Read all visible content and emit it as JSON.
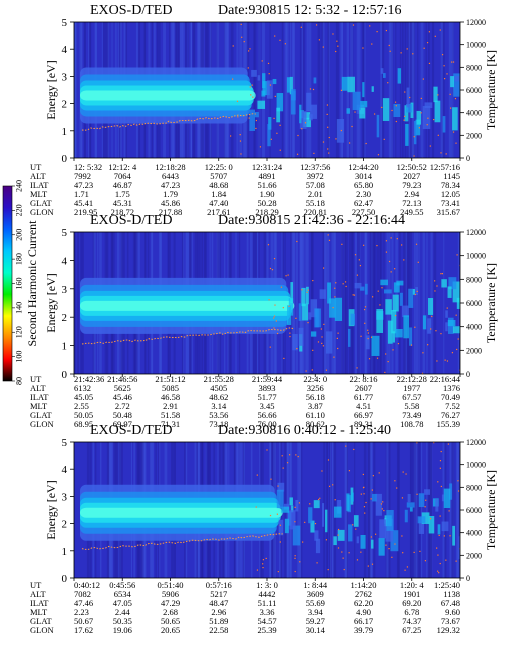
{
  "chart_data": {
    "type": "heatmap",
    "colorbar": {
      "label": "Second Harmonic Current",
      "ticks": [
        "80",
        "100",
        "120",
        "140",
        "160",
        "180",
        "200",
        "220",
        "240"
      ],
      "colors": [
        "#000000",
        "#ff0000",
        "#ff8800",
        "#ffff00",
        "#00ee00",
        "#00ffcc",
        "#00c8ff",
        "#0060ff",
        "#2a10c8",
        "#4b0082"
      ]
    },
    "panels": [
      {
        "title": "EXOS-D/TED",
        "date": "Date:930815  12: 5:32 - 12:57:16",
        "ylabel": "Energy [eV]",
        "y2label": "Temperature [K]",
        "yticks": [
          "0",
          "1",
          "2",
          "3",
          "4",
          "5"
        ],
        "y2ticks": [
          "0",
          "2000",
          "4000",
          "6000",
          "8000",
          "10000",
          "12000"
        ],
        "ylim": [
          0,
          5
        ],
        "y2lim": [
          0,
          12000
        ],
        "band": {
          "center_ev": 2.3,
          "end_fraction": 0.45
        },
        "rows": [
          {
            "label": "UT",
            "values": [
              "12: 5:32",
              "12:12: 4",
              "12:18:28",
              "12:25: 0",
              "12:31:24",
              "12:37:56",
              "12:44:20",
              "12:50:52",
              "12:57:16"
            ]
          },
          {
            "label": "ALT",
            "values": [
              "7992",
              "7064",
              "6443",
              "5707",
              "4891",
              "3972",
              "3014",
              "2027",
              "1145"
            ]
          },
          {
            "label": "ILAT",
            "values": [
              "47.23",
              "46.87",
              "47.23",
              "48.68",
              "51.66",
              "57.08",
              "65.80",
              "79.23",
              "78.34"
            ]
          },
          {
            "label": "MLT",
            "values": [
              "1.71",
              "1.75",
              "1.79",
              "1.84",
              "1.90",
              "2.01",
              "2.30",
              "2.94",
              "12.05"
            ]
          },
          {
            "label": "GLAT",
            "values": [
              "45.41",
              "45.31",
              "45.86",
              "47.40",
              "50.28",
              "55.18",
              "62.47",
              "72.13",
              "73.41"
            ]
          },
          {
            "label": "GLON",
            "values": [
              "219.95",
              "218.72",
              "217.88",
              "217.61",
              "218.29",
              "220.81",
              "227.50",
              "249.55",
              "315.67"
            ]
          }
        ]
      },
      {
        "title": "EXOS-D/TED",
        "date": "Date:930815  21:42:36 - 22:16:44",
        "ylabel": "Energy [eV]",
        "y2label": "Temperature [K]",
        "yticks": [
          "0",
          "1",
          "2",
          "3",
          "4",
          "5"
        ],
        "y2ticks": [
          "0",
          "2000",
          "4000",
          "6000",
          "8000",
          "10000",
          "12000"
        ],
        "ylim": [
          0,
          5
        ],
        "y2lim": [
          0,
          12000
        ],
        "band": {
          "center_ev": 2.4,
          "end_fraction": 0.55
        },
        "rows": [
          {
            "label": "UT",
            "values": [
              "21:42:36",
              "21:46:56",
              "21:51:12",
              "21:55:28",
              "21:59:44",
              "22:4: 0",
              "22: 8:16",
              "22:12:28",
              "22:16:44"
            ]
          },
          {
            "label": "ALT",
            "values": [
              "6132",
              "5625",
              "5085",
              "4505",
              "3893",
              "3256",
              "2607",
              "1977",
              "1376"
            ]
          },
          {
            "label": "ILAT",
            "values": [
              "45.05",
              "45.46",
              "46.58",
              "48.62",
              "51.77",
              "56.18",
              "61.77",
              "67.57",
              "70.49"
            ]
          },
          {
            "label": "MLT",
            "values": [
              "2.55",
              "2.72",
              "2.91",
              "3.14",
              "3.45",
              "3.87",
              "4.51",
              "5.58",
              "7.52"
            ]
          },
          {
            "label": "GLAT",
            "values": [
              "50.05",
              "50.48",
              "51.58",
              "53.56",
              "56.66",
              "61.10",
              "66.97",
              "73.49",
              "76.27"
            ]
          },
          {
            "label": "GLON",
            "values": [
              "68.95",
              "69.97",
              "71.31",
              "73.18",
              "76.00",
              "80.62",
              "89.31",
              "108.78",
              "155.39"
            ]
          }
        ]
      },
      {
        "title": "EXOS-D/TED",
        "date": "Date:930816  0:40:12 - 1:25:40",
        "ylabel": "Energy [eV]",
        "y2label": "Temperature [K]",
        "yticks": [
          "0",
          "1",
          "2",
          "3",
          "4",
          "5"
        ],
        "y2ticks": [
          "0",
          "2000",
          "4000",
          "6000",
          "8000",
          "10000",
          "12000"
        ],
        "ylim": [
          0,
          5
        ],
        "y2lim": [
          0,
          12000
        ],
        "band": {
          "center_ev": 2.4,
          "end_fraction": 0.52
        },
        "rows": [
          {
            "label": "UT",
            "values": [
              "0:40:12",
              "0:45:56",
              "0:51:40",
              "0:57:16",
              "1: 3: 0",
              "1: 8:44",
              "1:14:20",
              "1:20: 4",
              "1:25:40"
            ]
          },
          {
            "label": "ALT",
            "values": [
              "7082",
              "6534",
              "5906",
              "5217",
              "4442",
              "3609",
              "2762",
              "1901",
              "1138"
            ]
          },
          {
            "label": "ILAT",
            "values": [
              "47.46",
              "47.05",
              "47.29",
              "48.47",
              "51.11",
              "55.69",
              "62.20",
              "69.20",
              "67.48"
            ]
          },
          {
            "label": "MLT",
            "values": [
              "2.23",
              "2.44",
              "2.68",
              "2.96",
              "3.36",
              "3.94",
              "4.90",
              "6.78",
              "9.60"
            ]
          },
          {
            "label": "GLAT",
            "values": [
              "50.67",
              "50.35",
              "50.65",
              "51.89",
              "54.57",
              "59.27",
              "66.17",
              "74.37",
              "73.67"
            ]
          },
          {
            "label": "GLON",
            "values": [
              "17.62",
              "19.06",
              "20.65",
              "22.58",
              "25.39",
              "30.14",
              "39.79",
              "67.25",
              "129.32"
            ]
          }
        ]
      }
    ]
  }
}
